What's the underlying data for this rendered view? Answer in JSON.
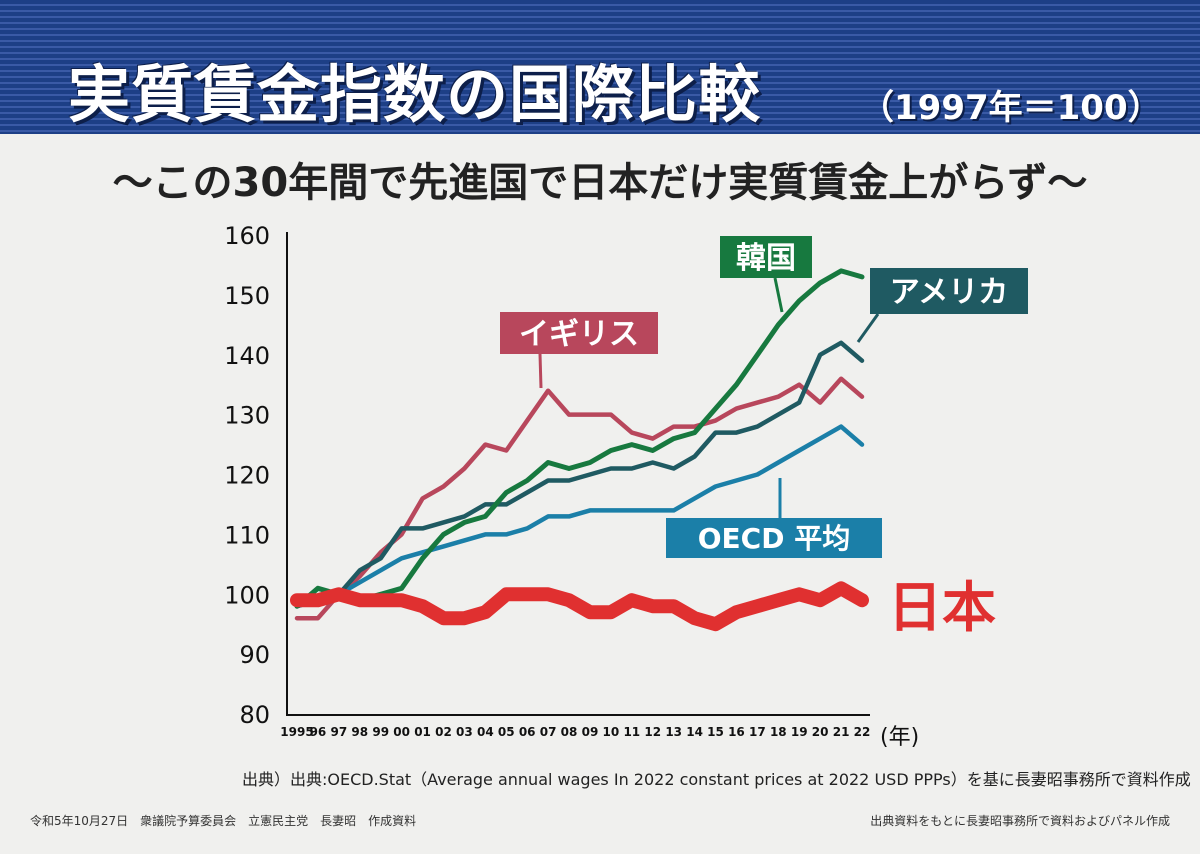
{
  "header": {
    "title": "実質賃金指数の国際比較",
    "title_sub": "（1997年＝100）",
    "subtitle": "～この30年間で先進国で日本だけ実質賃金上がらず～"
  },
  "colors": {
    "header_bg": "#1d3f86",
    "uk": "#b8475c",
    "korea": "#17793f",
    "usa": "#1f5a62",
    "oecd": "#1b7fa8",
    "japan": "#e03030"
  },
  "chart_data": {
    "type": "line",
    "title": "実質賃金指数の国際比較",
    "xlabel": "(年)",
    "ylabel": "",
    "ylim": [
      80,
      160
    ],
    "yticks": [
      "80",
      "90",
      "100",
      "110",
      "120",
      "130",
      "140",
      "150",
      "160"
    ],
    "x": [
      "1995",
      "96",
      "97",
      "98",
      "99",
      "00",
      "01",
      "02",
      "03",
      "04",
      "05",
      "06",
      "07",
      "08",
      "09",
      "10",
      "11",
      "12",
      "13",
      "14",
      "15",
      "16",
      "17",
      "18",
      "19",
      "20",
      "21",
      "22"
    ],
    "series": [
      {
        "name": "イギリス",
        "values": [
          96,
          96,
          100,
          103,
          107,
          110,
          116,
          118,
          121,
          125,
          124,
          129,
          134,
          130,
          130,
          130,
          127,
          126,
          128,
          128,
          129,
          131,
          132,
          133,
          135,
          132,
          136,
          133
        ]
      },
      {
        "name": "韓国",
        "values": [
          98,
          101,
          100,
          99,
          100,
          101,
          106,
          110,
          112,
          113,
          117,
          119,
          122,
          121,
          122,
          124,
          125,
          124,
          126,
          127,
          131,
          135,
          140,
          145,
          149,
          152,
          154,
          153
        ]
      },
      {
        "name": "アメリカ",
        "values": [
          98,
          99,
          100,
          104,
          106,
          111,
          111,
          112,
          113,
          115,
          115,
          117,
          119,
          119,
          120,
          121,
          121,
          122,
          121,
          123,
          127,
          127,
          128,
          130,
          132,
          140,
          142,
          139
        ]
      },
      {
        "name": "OECD 平均",
        "values": [
          98,
          99,
          100,
          102,
          104,
          106,
          107,
          108,
          109,
          110,
          110,
          111,
          113,
          113,
          114,
          114,
          114,
          114,
          114,
          116,
          118,
          119,
          120,
          122,
          124,
          126,
          128,
          125
        ]
      },
      {
        "name": "日本",
        "values": [
          99,
          99,
          100,
          99,
          99,
          99,
          98,
          96,
          96,
          97,
          100,
          100,
          100,
          99,
          97,
          97,
          99,
          98,
          98,
          96,
          95,
          97,
          98,
          99,
          100,
          99,
          101,
          99
        ]
      }
    ],
    "labels": {
      "uk": "イギリス",
      "korea": "韓国",
      "usa": "アメリカ",
      "oecd": "OECD 平均",
      "japan": "日本"
    }
  },
  "footer": {
    "source": "出典）出典:OECD.Stat（Average annual wages In 2022 constant prices at 2022 USD PPPs）を基に長妻昭事務所で資料作成",
    "left": "令和5年10月27日　衆議院予算委員会　立憲民主党　長妻昭　作成資料",
    "right": "出典資料をもとに長妻昭事務所で資料およびパネル作成"
  }
}
